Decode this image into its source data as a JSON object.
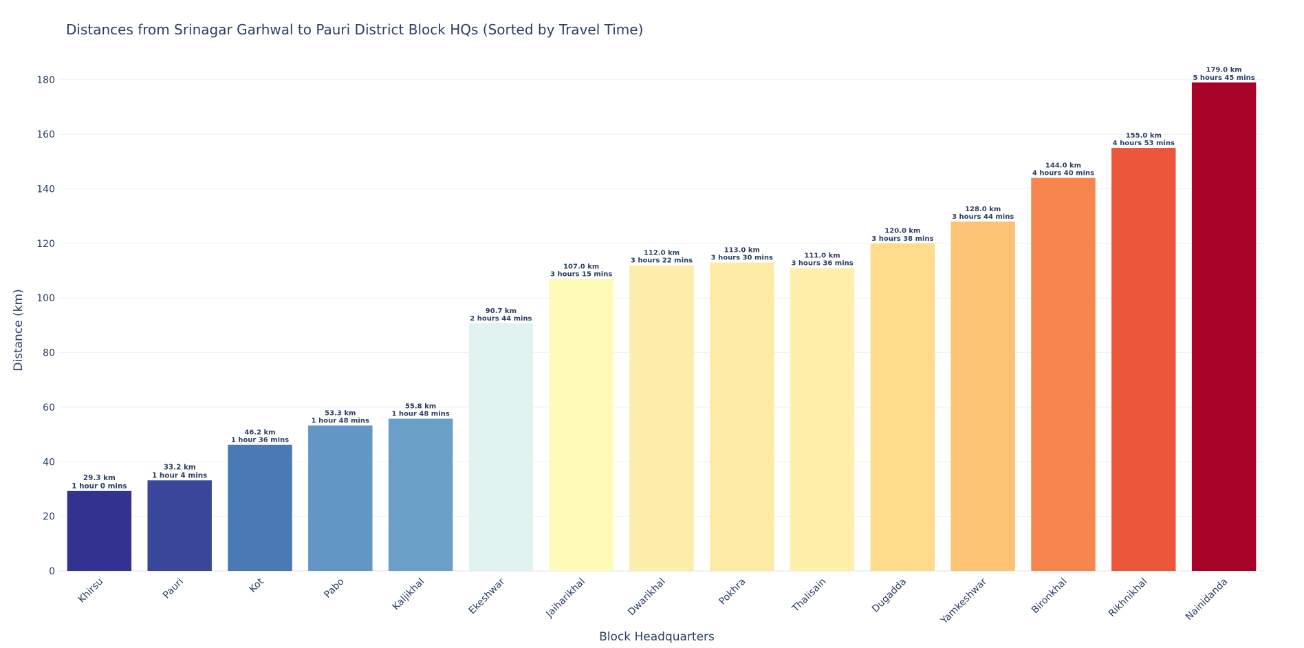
{
  "chart_data": {
    "type": "bar",
    "title": "Distances from Srinagar Garhwal to Pauri District Block HQs (Sorted by Travel Time)",
    "xlabel": "Block Headquarters",
    "ylabel": "Distance (km)",
    "ylim": [
      0,
      185
    ],
    "yticks": [
      0,
      20,
      40,
      60,
      80,
      100,
      120,
      140,
      160,
      180
    ],
    "grid": true,
    "legend": "none",
    "categories": [
      "Khirsu",
      "Pauri",
      "Kot",
      "Pabo",
      "Kaljikhal",
      "Ekeshwar",
      "Jaiharikhal",
      "Dwarikhal",
      "Pokhra",
      "Thalisain",
      "Dugadda",
      "Yamkeshwar",
      "Bironkhal",
      "Rikhnikhal",
      "Naini­danda"
    ],
    "values": [
      29.3,
      33.2,
      46.2,
      53.3,
      55.8,
      90.7,
      107.0,
      112.0,
      113.0,
      111.0,
      120.0,
      128.0,
      144.0,
      155.0,
      179.0
    ],
    "label_lines": [
      [
        "29.3 km",
        "1 hour 0 mins"
      ],
      [
        "33.2 km",
        "1 hour 4 mins"
      ],
      [
        "46.2 km",
        "1 hour 36 mins"
      ],
      [
        "53.3 km",
        "1 hour 48 mins"
      ],
      [
        "55.8 km",
        "1 hour 48 mins"
      ],
      [
        "90.7 km",
        "2 hours 44 mins"
      ],
      [
        "107.0 km",
        "3 hours 15 mins"
      ],
      [
        "112.0 km",
        "3 hours 22 mins"
      ],
      [
        "113.0 km",
        "3 hours 30 mins"
      ],
      [
        "111.0 km",
        "3 hours 36 mins"
      ],
      [
        "120.0 km",
        "3 hours 38 mins"
      ],
      [
        "128.0 km",
        "3 hours 44 mins"
      ],
      [
        "144.0 km",
        "4 hours 40 mins"
      ],
      [
        "155.0 km",
        "4 hours 53 mins"
      ],
      [
        "179.0 km",
        "5 hours 45 mins"
      ]
    ],
    "colors": [
      "#323390",
      "#38479a",
      "#4a7ab5",
      "#6297c6",
      "#6aa0c8",
      "#e0f3f1",
      "#fefab8",
      "#fdedaa",
      "#fdeaa5",
      "#feefaa",
      "#fedc8c",
      "#fdc374",
      "#f7864e",
      "#ea573b",
      "#a70227"
    ]
  }
}
